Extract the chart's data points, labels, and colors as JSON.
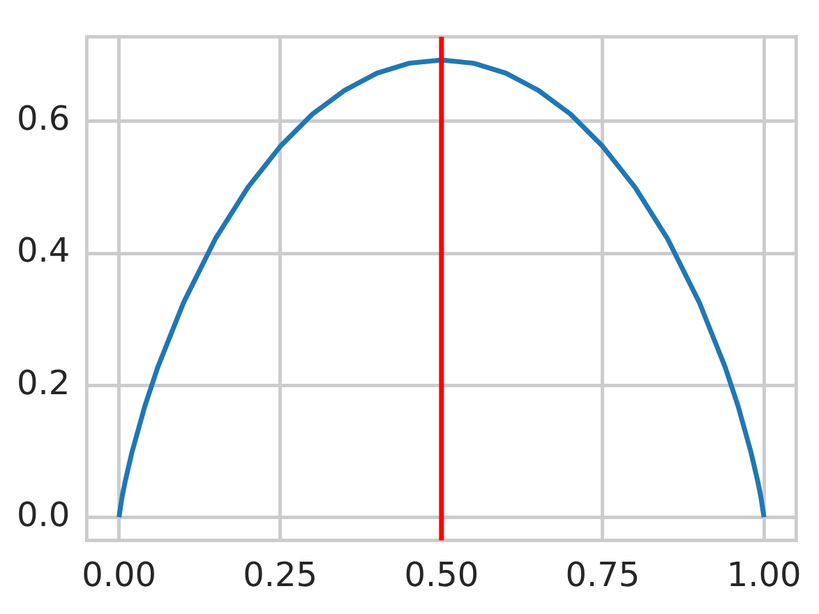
{
  "chart_data": {
    "type": "line",
    "x": [
      0,
      0.005,
      0.01,
      0.02,
      0.04,
      0.06,
      0.1,
      0.15,
      0.2,
      0.25,
      0.3,
      0.35,
      0.4,
      0.45,
      0.5,
      0.55,
      0.6,
      0.65,
      0.7,
      0.75,
      0.8,
      0.85,
      0.9,
      0.94,
      0.96,
      0.98,
      0.99,
      0.995,
      1
    ],
    "series": [
      {
        "color": "#2077b4",
        "values": [
          0,
          0.032,
          0.056,
          0.098,
          0.168,
          0.227,
          0.325,
          0.423,
          0.5,
          0.562,
          0.611,
          0.647,
          0.673,
          0.688,
          0.693,
          0.688,
          0.673,
          0.647,
          0.611,
          0.562,
          0.5,
          0.423,
          0.325,
          0.227,
          0.168,
          0.098,
          0.056,
          0.032,
          0
        ]
      }
    ],
    "xlim": [
      -0.05,
      1.05
    ],
    "xticks": [
      {
        "value": 0,
        "label": "0.00"
      },
      0.25,
      {
        "value": 0.5,
        "label": "0.50"
      },
      0.75,
      {
        "value": 1,
        "label": "1.00"
      }
    ],
    "ylim": [
      -0.035,
      0.728
    ],
    "yticks": [
      {
        "value": 0,
        "label": "0.0"
      },
      0.2,
      0.4,
      0.6
    ],
    "grid": true,
    "legend": false,
    "ref_lines": [
      {
        "axis": "x",
        "value": 0.5,
        "color": "#ff0000"
      }
    ]
  }
}
